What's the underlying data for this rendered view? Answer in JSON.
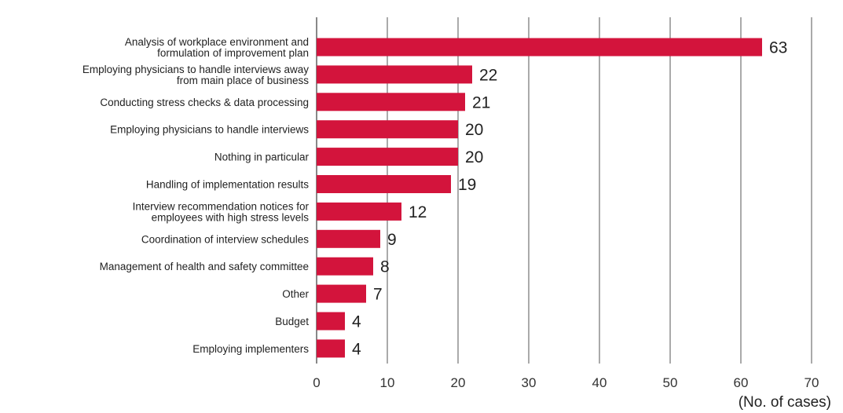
{
  "chart_data": {
    "type": "bar",
    "orientation": "horizontal",
    "categories": [
      [
        "Analysis of workplace environment and",
        "formulation of improvement plan"
      ],
      [
        "Employing physicians to handle interviews away",
        "from main place of business"
      ],
      [
        "Conducting stress checks & data processing"
      ],
      [
        "Employing physicians to handle interviews"
      ],
      [
        "Nothing in particular"
      ],
      [
        "Handling of implementation results"
      ],
      [
        "Interview recommendation notices for",
        "employees with high stress levels"
      ],
      [
        "Coordination of interview schedules"
      ],
      [
        "Management of health and safety committee"
      ],
      [
        "Other"
      ],
      [
        "Budget"
      ],
      [
        "Employing implementers"
      ]
    ],
    "values": [
      63,
      22,
      21,
      20,
      20,
      19,
      12,
      9,
      8,
      7,
      4,
      4
    ],
    "xlabel": "(No. of cases)",
    "xlim": [
      0,
      70
    ],
    "xticks": [
      0,
      10,
      20,
      30,
      40,
      50,
      60,
      70
    ],
    "grid": "vertical",
    "bar_color": "#d3143c",
    "grid_color": "#555555"
  }
}
